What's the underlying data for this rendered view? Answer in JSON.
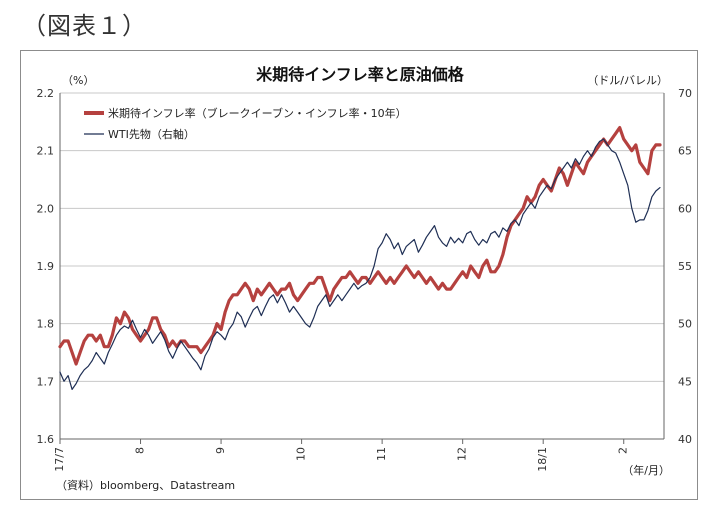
{
  "figure_label": "（図表１）",
  "chart_data": {
    "type": "line",
    "title": "米期待インフレ率と原油価格",
    "y_left_unit": "（%）",
    "y_right_unit": "（ドル/バレル）",
    "x_unit": "（年/月）",
    "source": "（資料）bloomberg、Datastream",
    "ylim_left": [
      1.6,
      2.2
    ],
    "ylim_right": [
      40,
      70
    ],
    "y_left_ticks": [
      "1.6",
      "1.7",
      "1.8",
      "1.9",
      "2.0",
      "2.1",
      "2.2"
    ],
    "y_right_ticks": [
      "40",
      "45",
      "50",
      "55",
      "60",
      "65",
      "70"
    ],
    "x_ticks": [
      {
        "label": "17/7",
        "t": 0
      },
      {
        "label": "8",
        "t": 1
      },
      {
        "label": "9",
        "t": 2
      },
      {
        "label": "10",
        "t": 3
      },
      {
        "label": "11",
        "t": 4
      },
      {
        "label": "12",
        "t": 5
      },
      {
        "label": "18/1",
        "t": 6
      },
      {
        "label": "2",
        "t": 7
      }
    ],
    "xlim": [
      0,
      7.5
    ],
    "grid": "horizontal",
    "legend_position": "top-left",
    "series": [
      {
        "name": "米期待インフレ率（ブレークイーブン・インフレ率・10年）",
        "axis": "left",
        "color": "#b5413f",
        "points": [
          [
            0.0,
            1.76
          ],
          [
            0.05,
            1.77
          ],
          [
            0.1,
            1.77
          ],
          [
            0.15,
            1.75
          ],
          [
            0.2,
            1.73
          ],
          [
            0.25,
            1.75
          ],
          [
            0.3,
            1.77
          ],
          [
            0.35,
            1.78
          ],
          [
            0.4,
            1.78
          ],
          [
            0.45,
            1.77
          ],
          [
            0.5,
            1.78
          ],
          [
            0.55,
            1.76
          ],
          [
            0.6,
            1.76
          ],
          [
            0.65,
            1.78
          ],
          [
            0.7,
            1.81
          ],
          [
            0.75,
            1.8
          ],
          [
            0.8,
            1.82
          ],
          [
            0.85,
            1.81
          ],
          [
            0.9,
            1.79
          ],
          [
            0.95,
            1.78
          ],
          [
            1.0,
            1.77
          ],
          [
            1.05,
            1.78
          ],
          [
            1.1,
            1.79
          ],
          [
            1.15,
            1.81
          ],
          [
            1.2,
            1.81
          ],
          [
            1.25,
            1.79
          ],
          [
            1.3,
            1.78
          ],
          [
            1.35,
            1.76
          ],
          [
            1.4,
            1.77
          ],
          [
            1.45,
            1.76
          ],
          [
            1.5,
            1.77
          ],
          [
            1.55,
            1.77
          ],
          [
            1.6,
            1.76
          ],
          [
            1.65,
            1.76
          ],
          [
            1.7,
            1.76
          ],
          [
            1.75,
            1.75
          ],
          [
            1.8,
            1.76
          ],
          [
            1.85,
            1.77
          ],
          [
            1.9,
            1.78
          ],
          [
            1.95,
            1.8
          ],
          [
            2.0,
            1.79
          ],
          [
            2.05,
            1.82
          ],
          [
            2.1,
            1.84
          ],
          [
            2.15,
            1.85
          ],
          [
            2.2,
            1.85
          ],
          [
            2.25,
            1.86
          ],
          [
            2.3,
            1.87
          ],
          [
            2.35,
            1.86
          ],
          [
            2.4,
            1.84
          ],
          [
            2.45,
            1.86
          ],
          [
            2.5,
            1.85
          ],
          [
            2.55,
            1.86
          ],
          [
            2.6,
            1.87
          ],
          [
            2.65,
            1.86
          ],
          [
            2.7,
            1.85
          ],
          [
            2.75,
            1.86
          ],
          [
            2.8,
            1.86
          ],
          [
            2.85,
            1.87
          ],
          [
            2.9,
            1.85
          ],
          [
            2.95,
            1.84
          ],
          [
            3.0,
            1.85
          ],
          [
            3.05,
            1.86
          ],
          [
            3.1,
            1.87
          ],
          [
            3.15,
            1.87
          ],
          [
            3.2,
            1.88
          ],
          [
            3.25,
            1.88
          ],
          [
            3.3,
            1.86
          ],
          [
            3.35,
            1.84
          ],
          [
            3.4,
            1.86
          ],
          [
            3.45,
            1.87
          ],
          [
            3.5,
            1.88
          ],
          [
            3.55,
            1.88
          ],
          [
            3.6,
            1.89
          ],
          [
            3.65,
            1.88
          ],
          [
            3.7,
            1.87
          ],
          [
            3.75,
            1.88
          ],
          [
            3.8,
            1.88
          ],
          [
            3.85,
            1.87
          ],
          [
            3.9,
            1.88
          ],
          [
            3.95,
            1.89
          ],
          [
            4.0,
            1.88
          ],
          [
            4.05,
            1.87
          ],
          [
            4.1,
            1.88
          ],
          [
            4.15,
            1.87
          ],
          [
            4.2,
            1.88
          ],
          [
            4.25,
            1.89
          ],
          [
            4.3,
            1.9
          ],
          [
            4.35,
            1.89
          ],
          [
            4.4,
            1.88
          ],
          [
            4.45,
            1.89
          ],
          [
            4.5,
            1.88
          ],
          [
            4.55,
            1.87
          ],
          [
            4.6,
            1.88
          ],
          [
            4.65,
            1.87
          ],
          [
            4.7,
            1.86
          ],
          [
            4.75,
            1.87
          ],
          [
            4.8,
            1.86
          ],
          [
            4.85,
            1.86
          ],
          [
            4.9,
            1.87
          ],
          [
            4.95,
            1.88
          ],
          [
            5.0,
            1.89
          ],
          [
            5.05,
            1.88
          ],
          [
            5.1,
            1.9
          ],
          [
            5.15,
            1.89
          ],
          [
            5.2,
            1.88
          ],
          [
            5.25,
            1.9
          ],
          [
            5.3,
            1.91
          ],
          [
            5.35,
            1.89
          ],
          [
            5.4,
            1.89
          ],
          [
            5.45,
            1.9
          ],
          [
            5.5,
            1.92
          ],
          [
            5.55,
            1.95
          ],
          [
            5.6,
            1.97
          ],
          [
            5.65,
            1.98
          ],
          [
            5.7,
            1.99
          ],
          [
            5.75,
            2.0
          ],
          [
            5.8,
            2.02
          ],
          [
            5.85,
            2.01
          ],
          [
            5.9,
            2.02
          ],
          [
            5.95,
            2.04
          ],
          [
            6.0,
            2.05
          ],
          [
            6.05,
            2.04
          ],
          [
            6.1,
            2.03
          ],
          [
            6.15,
            2.05
          ],
          [
            6.2,
            2.07
          ],
          [
            6.25,
            2.06
          ],
          [
            6.3,
            2.04
          ],
          [
            6.35,
            2.06
          ],
          [
            6.4,
            2.08
          ],
          [
            6.45,
            2.07
          ],
          [
            6.5,
            2.06
          ],
          [
            6.55,
            2.08
          ],
          [
            6.6,
            2.09
          ],
          [
            6.65,
            2.1
          ],
          [
            6.7,
            2.11
          ],
          [
            6.75,
            2.12
          ],
          [
            6.8,
            2.11
          ],
          [
            6.85,
            2.12
          ],
          [
            6.9,
            2.13
          ],
          [
            6.95,
            2.14
          ],
          [
            7.0,
            2.12
          ],
          [
            7.05,
            2.11
          ],
          [
            7.1,
            2.1
          ],
          [
            7.15,
            2.11
          ],
          [
            7.2,
            2.08
          ],
          [
            7.25,
            2.07
          ],
          [
            7.3,
            2.06
          ],
          [
            7.35,
            2.1
          ],
          [
            7.4,
            2.11
          ],
          [
            7.45,
            2.11
          ]
        ]
      },
      {
        "name": "WTI先物（右軸）",
        "axis": "right",
        "color": "#1f2f55",
        "points": [
          [
            0.0,
            45.8
          ],
          [
            0.05,
            45.0
          ],
          [
            0.1,
            45.5
          ],
          [
            0.15,
            44.3
          ],
          [
            0.2,
            44.8
          ],
          [
            0.25,
            45.5
          ],
          [
            0.3,
            46.0
          ],
          [
            0.35,
            46.3
          ],
          [
            0.4,
            46.8
          ],
          [
            0.45,
            47.5
          ],
          [
            0.5,
            47.0
          ],
          [
            0.55,
            46.5
          ],
          [
            0.6,
            47.5
          ],
          [
            0.65,
            48.2
          ],
          [
            0.7,
            49.0
          ],
          [
            0.75,
            49.5
          ],
          [
            0.8,
            49.8
          ],
          [
            0.85,
            49.6
          ],
          [
            0.9,
            50.3
          ],
          [
            0.95,
            49.5
          ],
          [
            1.0,
            48.8
          ],
          [
            1.05,
            49.5
          ],
          [
            1.1,
            49.0
          ],
          [
            1.15,
            48.3
          ],
          [
            1.2,
            48.8
          ],
          [
            1.25,
            49.3
          ],
          [
            1.3,
            48.6
          ],
          [
            1.35,
            47.6
          ],
          [
            1.4,
            47.0
          ],
          [
            1.45,
            47.8
          ],
          [
            1.5,
            48.5
          ],
          [
            1.55,
            48.0
          ],
          [
            1.6,
            47.5
          ],
          [
            1.65,
            47.0
          ],
          [
            1.7,
            46.6
          ],
          [
            1.75,
            46.0
          ],
          [
            1.8,
            47.2
          ],
          [
            1.85,
            47.8
          ],
          [
            1.9,
            48.8
          ],
          [
            1.95,
            49.3
          ],
          [
            2.0,
            49.0
          ],
          [
            2.05,
            48.6
          ],
          [
            2.1,
            49.5
          ],
          [
            2.15,
            50.0
          ],
          [
            2.2,
            51.0
          ],
          [
            2.25,
            50.6
          ],
          [
            2.3,
            49.7
          ],
          [
            2.35,
            50.5
          ],
          [
            2.4,
            51.2
          ],
          [
            2.45,
            51.5
          ],
          [
            2.5,
            50.7
          ],
          [
            2.55,
            51.5
          ],
          [
            2.6,
            52.2
          ],
          [
            2.65,
            52.5
          ],
          [
            2.7,
            51.8
          ],
          [
            2.75,
            52.5
          ],
          [
            2.8,
            51.8
          ],
          [
            2.85,
            51.0
          ],
          [
            2.9,
            51.5
          ],
          [
            2.95,
            51.0
          ],
          [
            3.0,
            50.5
          ],
          [
            3.05,
            50.0
          ],
          [
            3.1,
            49.7
          ],
          [
            3.15,
            50.5
          ],
          [
            3.2,
            51.5
          ],
          [
            3.25,
            52.0
          ],
          [
            3.3,
            52.5
          ],
          [
            3.35,
            51.5
          ],
          [
            3.4,
            52.0
          ],
          [
            3.45,
            52.5
          ],
          [
            3.5,
            52.0
          ],
          [
            3.55,
            52.5
          ],
          [
            3.6,
            53.0
          ],
          [
            3.65,
            53.5
          ],
          [
            3.7,
            53.0
          ],
          [
            3.75,
            53.3
          ],
          [
            3.8,
            53.5
          ],
          [
            3.85,
            54.0
          ],
          [
            3.9,
            55.0
          ],
          [
            3.95,
            56.5
          ],
          [
            4.0,
            57.0
          ],
          [
            4.05,
            57.8
          ],
          [
            4.1,
            57.3
          ],
          [
            4.15,
            56.5
          ],
          [
            4.2,
            57.0
          ],
          [
            4.25,
            56.0
          ],
          [
            4.3,
            56.7
          ],
          [
            4.35,
            57.0
          ],
          [
            4.4,
            57.3
          ],
          [
            4.45,
            56.2
          ],
          [
            4.5,
            56.8
          ],
          [
            4.55,
            57.5
          ],
          [
            4.6,
            58.0
          ],
          [
            4.65,
            58.5
          ],
          [
            4.7,
            57.5
          ],
          [
            4.75,
            57.0
          ],
          [
            4.8,
            56.7
          ],
          [
            4.85,
            57.5
          ],
          [
            4.9,
            57.0
          ],
          [
            4.95,
            57.4
          ],
          [
            5.0,
            57.0
          ],
          [
            5.05,
            57.8
          ],
          [
            5.1,
            58.0
          ],
          [
            5.15,
            57.3
          ],
          [
            5.2,
            56.8
          ],
          [
            5.25,
            57.3
          ],
          [
            5.3,
            57.0
          ],
          [
            5.35,
            57.8
          ],
          [
            5.4,
            58.0
          ],
          [
            5.45,
            57.5
          ],
          [
            5.5,
            58.3
          ],
          [
            5.55,
            58.0
          ],
          [
            5.6,
            58.7
          ],
          [
            5.65,
            59.0
          ],
          [
            5.7,
            58.5
          ],
          [
            5.75,
            59.5
          ],
          [
            5.8,
            60.0
          ],
          [
            5.85,
            60.5
          ],
          [
            5.9,
            60.0
          ],
          [
            5.95,
            61.0
          ],
          [
            6.0,
            61.5
          ],
          [
            6.05,
            62.0
          ],
          [
            6.1,
            61.7
          ],
          [
            6.15,
            62.5
          ],
          [
            6.2,
            63.0
          ],
          [
            6.25,
            63.5
          ],
          [
            6.3,
            64.0
          ],
          [
            6.35,
            63.5
          ],
          [
            6.4,
            64.3
          ],
          [
            6.45,
            63.8
          ],
          [
            6.5,
            64.5
          ],
          [
            6.55,
            65.0
          ],
          [
            6.6,
            64.5
          ],
          [
            6.65,
            65.3
          ],
          [
            6.7,
            65.8
          ],
          [
            6.75,
            66.0
          ],
          [
            6.8,
            65.5
          ],
          [
            6.85,
            65.0
          ],
          [
            6.9,
            64.8
          ],
          [
            6.95,
            64.0
          ],
          [
            7.0,
            63.0
          ],
          [
            7.05,
            62.0
          ],
          [
            7.1,
            60.0
          ],
          [
            7.15,
            58.8
          ],
          [
            7.2,
            59.0
          ],
          [
            7.25,
            59.0
          ],
          [
            7.3,
            59.8
          ],
          [
            7.35,
            61.0
          ],
          [
            7.4,
            61.5
          ],
          [
            7.45,
            61.8
          ]
        ]
      }
    ]
  }
}
